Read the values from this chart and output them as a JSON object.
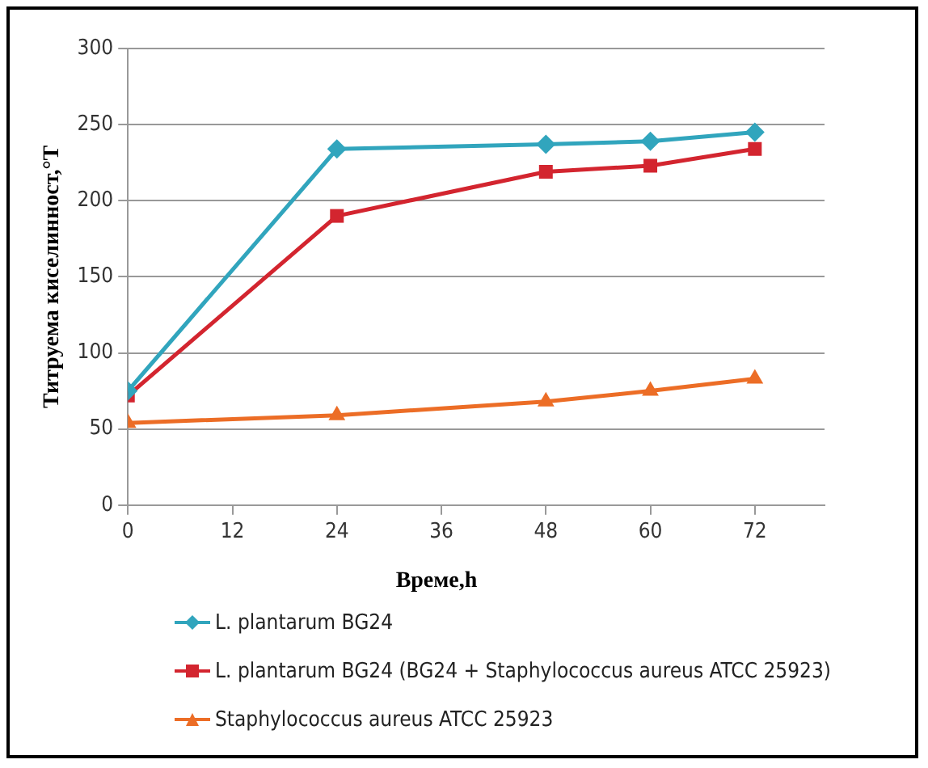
{
  "chart_data": {
    "type": "line",
    "xlabel": "Време,h",
    "ylabel": "Титруема киселинност,°T",
    "x": [
      0,
      24,
      48,
      60,
      72
    ],
    "xlim": [
      0,
      80
    ],
    "xticks": [
      0,
      12,
      24,
      36,
      48,
      60,
      72
    ],
    "ylim": [
      0,
      300
    ],
    "yticks": [
      0,
      50,
      100,
      150,
      200,
      250,
      300
    ],
    "grid": "y",
    "legend": "bottom",
    "series": [
      {
        "name": "L. plantarum BG24",
        "color": "#31a5bd",
        "marker": "diamond",
        "values": [
          75,
          234,
          237,
          239,
          245
        ]
      },
      {
        "name": "L. plantarum BG24 (BG24 +  Staphylococcus aureus ATCC 25923)",
        "color": "#d3252f",
        "marker": "square",
        "values": [
          72,
          190,
          219,
          223,
          234
        ]
      },
      {
        "name": "Staphylococcus aureus ATCC 25923",
        "color": "#ec6d26",
        "marker": "triangle",
        "values": [
          54,
          59,
          68,
          75,
          83
        ]
      }
    ]
  }
}
